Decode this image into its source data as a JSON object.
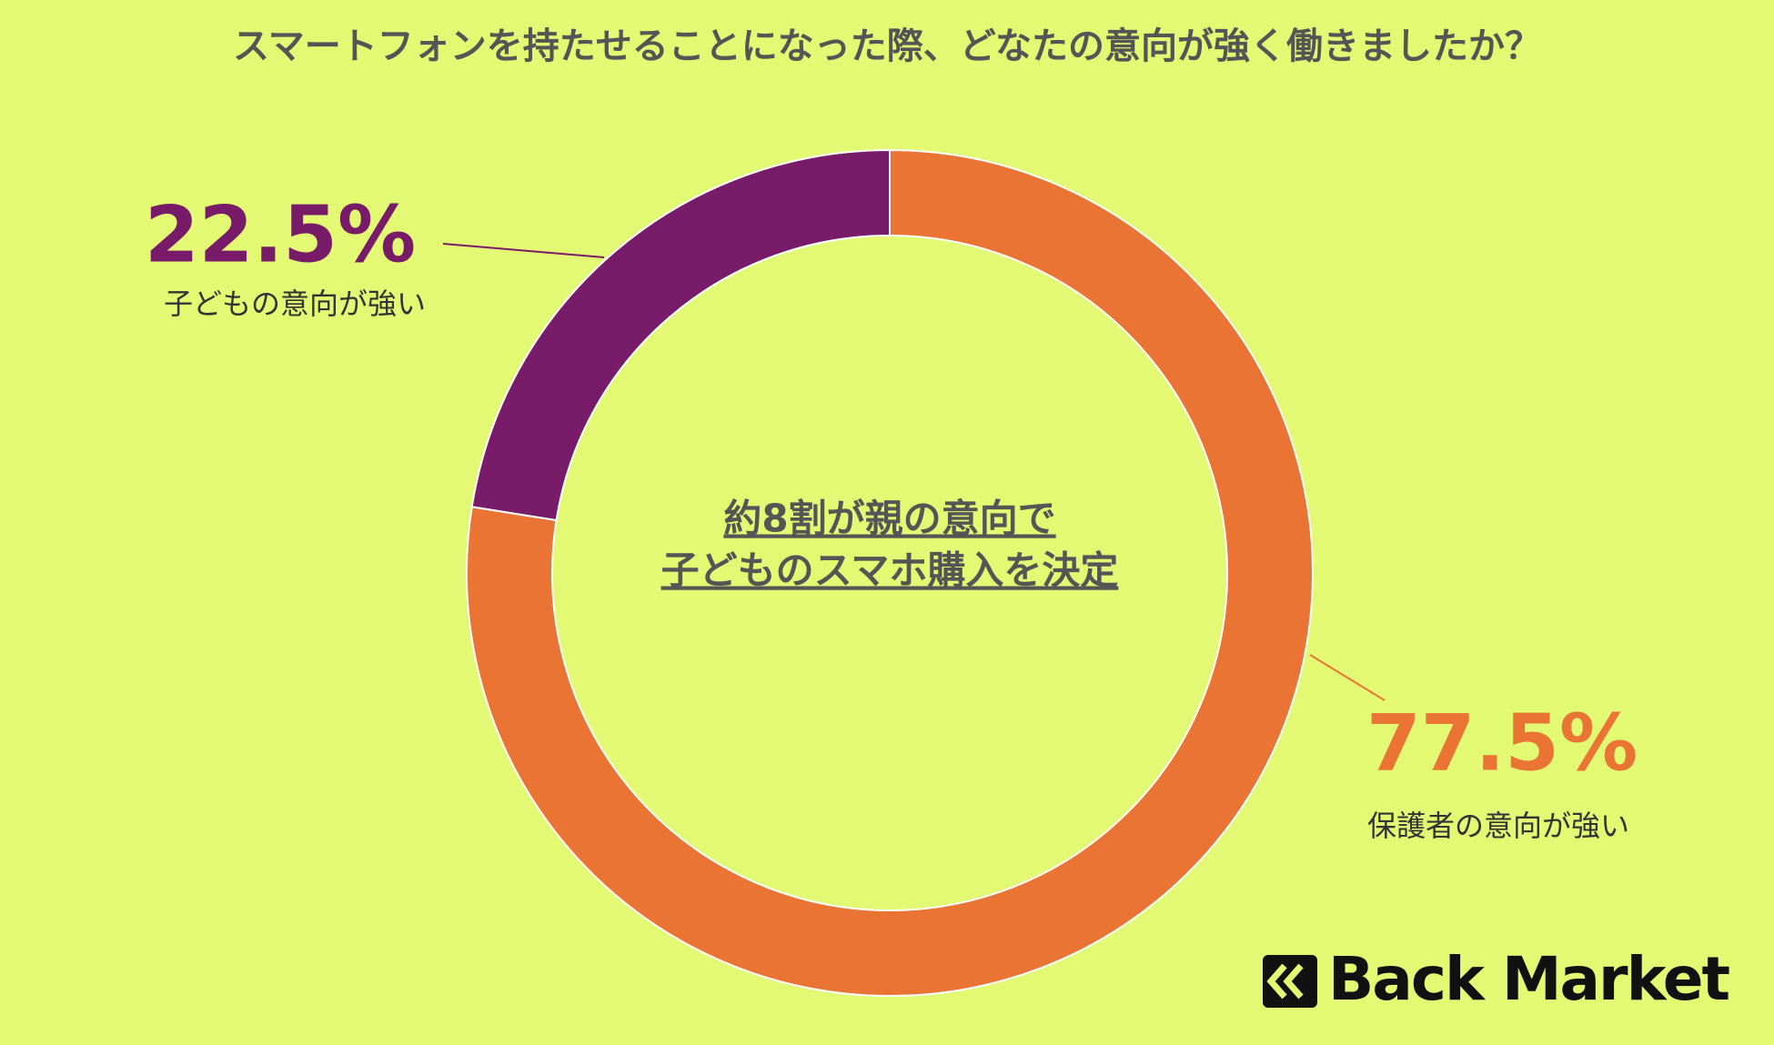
{
  "chart_data": {
    "type": "pie",
    "title": "スマートフォンを持たせることになった際、どなたの意向が強く働きましたか？",
    "categories": [
      "保護者の意向が強い",
      "子どもの意向が強い"
    ],
    "values": [
      77.5,
      22.5
    ],
    "value_labels": [
      "77.5%",
      "22.5%"
    ],
    "colors": [
      "#ea7434",
      "#781b68"
    ],
    "annotation": [
      "約8割が親の意向で",
      "子どものスマホ購入を決定"
    ],
    "logo": "Back Market"
  }
}
